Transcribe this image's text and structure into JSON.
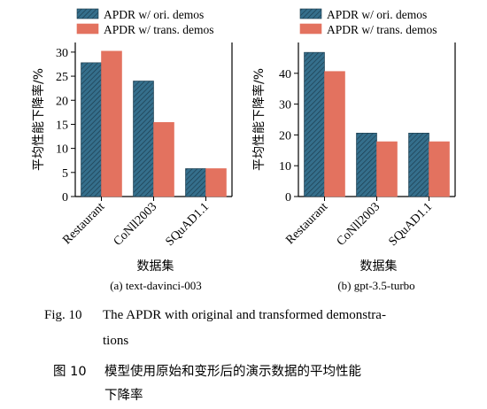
{
  "chart_data": [
    {
      "type": "bar",
      "sublabel": "(a)  text-davinci-003",
      "categories": [
        "Restaurant",
        "CoNll2003",
        "SQuAD1.1"
      ],
      "xlabel": "数据集",
      "ylabel": "平均性能下降率/%",
      "ylim": [
        0,
        32
      ],
      "yticks": [
        0,
        5,
        10,
        15,
        20,
        25,
        30
      ],
      "legend": "top-left",
      "grid": false,
      "series": [
        {
          "name": "APDR w/ ori. demos",
          "values": [
            27.8,
            24.0,
            5.8
          ],
          "color": "#356f8c",
          "hatch": true
        },
        {
          "name": "APDR w/ trans. demos",
          "values": [
            30.2,
            15.4,
            5.8
          ],
          "color": "#e3725f",
          "hatch": false
        }
      ]
    },
    {
      "type": "bar",
      "sublabel": "(b)  gpt-3.5-turbo",
      "categories": [
        "Restaurant",
        "CoNll2003",
        "SQuAD1.1"
      ],
      "xlabel": "数据集",
      "ylabel": "平均性能下降率/%",
      "ylim": [
        0,
        50
      ],
      "yticks": [
        0,
        10,
        20,
        30,
        40
      ],
      "legend": "top-left",
      "grid": false,
      "series": [
        {
          "name": "APDR w/ ori. demos",
          "values": [
            46.8,
            20.6,
            20.6
          ],
          "color": "#356f8c",
          "hatch": true
        },
        {
          "name": "APDR w/ trans. demos",
          "values": [
            40.6,
            17.8,
            17.8
          ],
          "color": "#e3725f",
          "hatch": false
        }
      ]
    }
  ],
  "caption": {
    "en_label": "Fig. 10",
    "en_text_1": "The APDR with original and transformed demonstra-",
    "en_text_2": "tions",
    "cn_label": "图 10",
    "cn_text_1": "模型使用原始和变形后的演示数据的平均性能",
    "cn_text_2": "下降率"
  }
}
